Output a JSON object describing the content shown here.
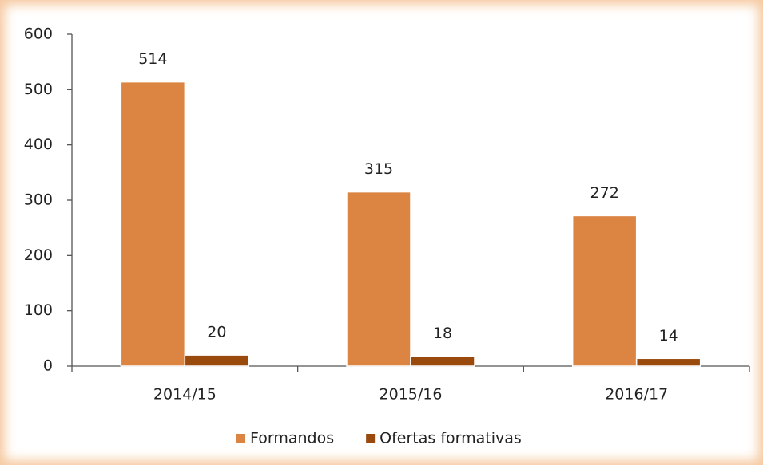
{
  "chart_data": {
    "type": "bar",
    "categories": [
      "2014/15",
      "2015/16",
      "2016/17"
    ],
    "series": [
      {
        "name": "Formandos",
        "color": "#dc8543",
        "values": [
          514,
          315,
          272
        ]
      },
      {
        "name": "Ofertas formativas",
        "color": "#9b4a0e",
        "values": [
          20,
          18,
          14
        ]
      }
    ],
    "ylim": [
      0,
      600
    ],
    "yticks": [
      0,
      100,
      200,
      300,
      400,
      500,
      600
    ],
    "grid": false,
    "legend": "bottom"
  }
}
